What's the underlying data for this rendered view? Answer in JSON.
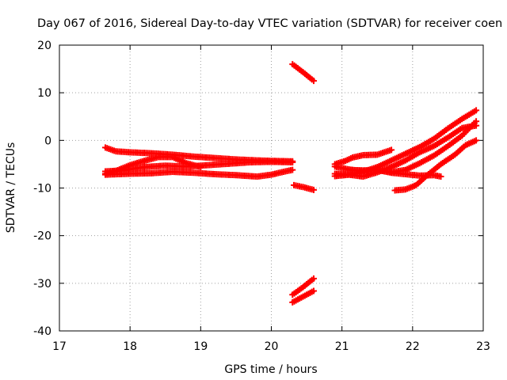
{
  "chart_data": {
    "type": "scatter",
    "title": "Day 067 of 2016, Sidereal Day-to-day VTEC variation (SDTVAR) for receiver coen",
    "xlabel": "GPS time / hours",
    "ylabel": "SDTVAR / TECUs",
    "xlim": [
      17,
      23
    ],
    "ylim": [
      -40,
      20
    ],
    "xticks": [
      17,
      18,
      19,
      20,
      21,
      22,
      23
    ],
    "yticks": [
      20,
      10,
      0,
      -10,
      -20,
      -30,
      -40
    ],
    "grid": true,
    "marker": "+",
    "color": "#ff0000",
    "series": [
      {
        "points": [
          [
            17.65,
            -1.5
          ],
          [
            17.8,
            -2.3
          ],
          [
            18.0,
            -2.5
          ],
          [
            18.3,
            -2.7
          ],
          [
            18.6,
            -3.0
          ],
          [
            18.9,
            -3.4
          ],
          [
            19.2,
            -3.7
          ],
          [
            19.5,
            -4.0
          ],
          [
            19.8,
            -4.2
          ],
          [
            20.0,
            -4.3
          ],
          [
            20.3,
            -4.4
          ]
        ]
      },
      {
        "points": [
          [
            17.65,
            -6.5
          ],
          [
            17.9,
            -6.3
          ],
          [
            18.2,
            -5.6
          ],
          [
            18.5,
            -5.3
          ],
          [
            18.8,
            -5.5
          ],
          [
            19.1,
            -5.2
          ],
          [
            19.4,
            -4.9
          ],
          [
            19.7,
            -4.6
          ],
          [
            20.0,
            -4.5
          ],
          [
            20.3,
            -4.6
          ]
        ]
      },
      {
        "points": [
          [
            17.65,
            -7.0
          ],
          [
            17.8,
            -6.4
          ],
          [
            18.0,
            -5.2
          ],
          [
            18.2,
            -4.3
          ],
          [
            18.4,
            -3.5
          ],
          [
            18.6,
            -3.5
          ],
          [
            18.8,
            -4.8
          ],
          [
            19.0,
            -5.6
          ]
        ]
      },
      {
        "points": [
          [
            17.65,
            -7.2
          ],
          [
            18.0,
            -7.0
          ],
          [
            18.3,
            -6.9
          ],
          [
            18.6,
            -6.6
          ],
          [
            18.9,
            -6.8
          ],
          [
            19.2,
            -7.1
          ],
          [
            19.5,
            -7.3
          ],
          [
            19.8,
            -7.6
          ],
          [
            20.0,
            -7.2
          ],
          [
            20.2,
            -6.5
          ],
          [
            20.3,
            -6.2
          ]
        ]
      },
      {
        "points": [
          [
            20.3,
            16.0
          ],
          [
            20.45,
            14.3
          ],
          [
            20.6,
            12.5
          ]
        ]
      },
      {
        "points": [
          [
            20.32,
            -9.4
          ],
          [
            20.45,
            -9.8
          ],
          [
            20.6,
            -10.4
          ]
        ]
      },
      {
        "points": [
          [
            20.3,
            -32.4
          ],
          [
            20.45,
            -30.8
          ],
          [
            20.6,
            -29.0
          ]
        ]
      },
      {
        "points": [
          [
            20.3,
            -34.0
          ],
          [
            20.45,
            -32.8
          ],
          [
            20.6,
            -31.6
          ]
        ]
      },
      {
        "points": [
          [
            20.9,
            -5.0
          ],
          [
            21.05,
            -4.3
          ],
          [
            21.15,
            -3.6
          ],
          [
            21.3,
            -3.1
          ],
          [
            21.5,
            -3.0
          ],
          [
            21.7,
            -2.0
          ]
        ]
      },
      {
        "points": [
          [
            20.9,
            -5.5
          ],
          [
            21.1,
            -6.1
          ],
          [
            21.3,
            -6.5
          ],
          [
            21.5,
            -6.2
          ],
          [
            21.7,
            -6.8
          ],
          [
            21.9,
            -7.1
          ],
          [
            22.1,
            -7.4
          ],
          [
            22.3,
            -7.3
          ],
          [
            22.4,
            -7.6
          ]
        ]
      },
      {
        "points": [
          [
            20.9,
            -7.0
          ],
          [
            21.1,
            -7.2
          ],
          [
            21.3,
            -7.6
          ],
          [
            21.5,
            -6.7
          ],
          [
            21.7,
            -5.6
          ],
          [
            21.9,
            -4.2
          ],
          [
            22.1,
            -2.5
          ],
          [
            22.3,
            -1.2
          ],
          [
            22.5,
            0.6
          ],
          [
            22.7,
            2.6
          ],
          [
            22.9,
            3.1
          ]
        ]
      },
      {
        "points": [
          [
            20.9,
            -7.5
          ],
          [
            21.1,
            -7.2
          ],
          [
            21.3,
            -6.6
          ],
          [
            21.5,
            -5.6
          ],
          [
            21.7,
            -4.2
          ],
          [
            21.9,
            -2.8
          ],
          [
            22.1,
            -1.4
          ],
          [
            22.3,
            0.3
          ],
          [
            22.5,
            2.5
          ],
          [
            22.7,
            4.5
          ],
          [
            22.9,
            6.3
          ]
        ]
      },
      {
        "points": [
          [
            21.1,
            -6.2
          ],
          [
            21.3,
            -6.3
          ],
          [
            21.5,
            -6.2
          ],
          [
            21.7,
            -6.7
          ],
          [
            21.9,
            -6.2
          ],
          [
            22.1,
            -4.8
          ],
          [
            22.3,
            -3.2
          ],
          [
            22.5,
            -1.2
          ],
          [
            22.7,
            1.0
          ],
          [
            22.9,
            4.0
          ]
        ]
      },
      {
        "points": [
          [
            21.75,
            -10.5
          ],
          [
            21.9,
            -10.3
          ],
          [
            22.05,
            -9.4
          ],
          [
            22.2,
            -7.4
          ],
          [
            22.4,
            -5.0
          ],
          [
            22.6,
            -3.0
          ],
          [
            22.75,
            -1.0
          ],
          [
            22.9,
            0.0
          ]
        ]
      }
    ]
  }
}
